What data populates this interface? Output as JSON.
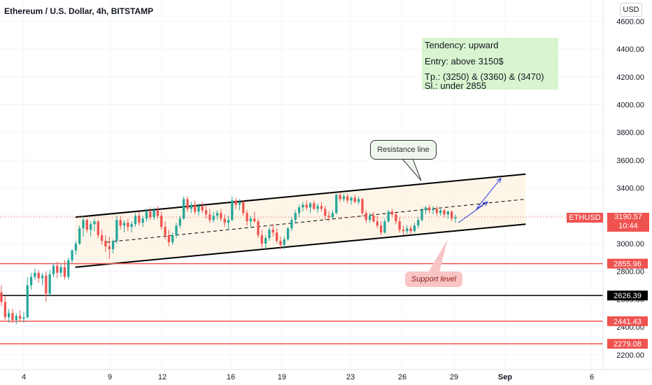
{
  "header": {
    "title": "Ethereum / U.S. Dollar, 4h, BITSTAMP",
    "currency_button": "USD"
  },
  "note": {
    "line1": "Tendency: upward",
    "line2": "Entry: above 3150$",
    "line3": "Tp.: (3250) & (3360) & (3470)",
    "line4": "Sl.: under 2855"
  },
  "callouts": {
    "resistance": "Resistance line",
    "support": "Support level"
  },
  "ticker": {
    "symbol": "ETHUSD",
    "price": "3190.57",
    "countdown": "10:44"
  },
  "colors": {
    "up": "#26a69a",
    "down": "#ef5350",
    "channel_fill": "#fdf3e1",
    "note_bg": "#d8f5cf",
    "arrow": "#2f3ee0"
  },
  "chart_data": {
    "type": "candlestick",
    "symbol": "ETHUSD",
    "interval": "4h",
    "exchange": "BITSTAMP",
    "ylim": [
      2150,
      4700
    ],
    "y_ticks": [
      2200,
      2400,
      2600,
      2800,
      3000,
      3200,
      3400,
      3600,
      3800,
      4000,
      4200,
      4400,
      4600
    ],
    "x_ticks": [
      "4",
      "9",
      "12",
      "16",
      "19",
      "23",
      "26",
      "29",
      "Sep",
      "6"
    ],
    "horizontal_levels": [
      {
        "value": 2855.96,
        "label": "2855.96",
        "color": "#ef5350"
      },
      {
        "value": 2626.39,
        "label": "2626.39",
        "color": "#000000"
      },
      {
        "value": 2441.43,
        "label": "2441.43",
        "color": "#ef5350"
      },
      {
        "value": 2279.08,
        "label": "2279.08",
        "color": "#ef5350"
      }
    ],
    "last_price": 3190.57,
    "channel": {
      "upper": {
        "start": {
          "date": "Aug 7",
          "value": 3190
        },
        "end": {
          "date": "Sep 1",
          "value": 3500
        }
      },
      "lower": {
        "start": {
          "date": "Aug 7",
          "value": 2830
        },
        "end": {
          "date": "Sep 1",
          "value": 3140
        }
      },
      "mid": {
        "start": {
          "date": "Aug 7",
          "value": 3010
        },
        "end": {
          "date": "Sep 1",
          "value": 3320
        }
      }
    },
    "projection": [
      {
        "date": "Aug 29",
        "value": 3150
      },
      {
        "date": "Aug 30",
        "value": 3300
      },
      {
        "date": "Aug 30",
        "value": 3250
      },
      {
        "date": "Aug 31",
        "value": 3470
      }
    ],
    "candles": [
      {
        "o": 2650,
        "h": 2700,
        "l": 2550,
        "c": 2580
      },
      {
        "o": 2580,
        "h": 2620,
        "l": 2450,
        "c": 2470
      },
      {
        "o": 2470,
        "h": 2530,
        "l": 2430,
        "c": 2500
      },
      {
        "o": 2500,
        "h": 2530,
        "l": 2430,
        "c": 2450
      },
      {
        "o": 2450,
        "h": 2500,
        "l": 2420,
        "c": 2480
      },
      {
        "o": 2480,
        "h": 2520,
        "l": 2440,
        "c": 2460
      },
      {
        "o": 2460,
        "h": 2510,
        "l": 2430,
        "c": 2470
      },
      {
        "o": 2470,
        "h": 2760,
        "l": 2460,
        "c": 2700
      },
      {
        "o": 2700,
        "h": 2790,
        "l": 2670,
        "c": 2760
      },
      {
        "o": 2760,
        "h": 2820,
        "l": 2740,
        "c": 2790
      },
      {
        "o": 2790,
        "h": 2810,
        "l": 2720,
        "c": 2750
      },
      {
        "o": 2750,
        "h": 2790,
        "l": 2700,
        "c": 2770
      },
      {
        "o": 2770,
        "h": 2800,
        "l": 2580,
        "c": 2640
      },
      {
        "o": 2640,
        "h": 2810,
        "l": 2620,
        "c": 2780
      },
      {
        "o": 2780,
        "h": 2860,
        "l": 2760,
        "c": 2840
      },
      {
        "o": 2840,
        "h": 2870,
        "l": 2750,
        "c": 2790
      },
      {
        "o": 2790,
        "h": 2850,
        "l": 2760,
        "c": 2830
      },
      {
        "o": 2830,
        "h": 2880,
        "l": 2740,
        "c": 2760
      },
      {
        "o": 2760,
        "h": 2900,
        "l": 2740,
        "c": 2880
      },
      {
        "o": 2880,
        "h": 2960,
        "l": 2860,
        "c": 2950
      },
      {
        "o": 2950,
        "h": 3020,
        "l": 2920,
        "c": 3000
      },
      {
        "o": 3000,
        "h": 3130,
        "l": 2990,
        "c": 3110
      },
      {
        "o": 3110,
        "h": 3200,
        "l": 3050,
        "c": 3170
      },
      {
        "o": 3170,
        "h": 3180,
        "l": 3080,
        "c": 3100
      },
      {
        "o": 3100,
        "h": 3160,
        "l": 3050,
        "c": 3140
      },
      {
        "o": 3140,
        "h": 3180,
        "l": 3090,
        "c": 3160
      },
      {
        "o": 3160,
        "h": 3170,
        "l": 3040,
        "c": 3060
      },
      {
        "o": 3060,
        "h": 3100,
        "l": 2990,
        "c": 3020
      },
      {
        "o": 3020,
        "h": 3060,
        "l": 2940,
        "c": 2980
      },
      {
        "o": 2980,
        "h": 3050,
        "l": 2890,
        "c": 2960
      },
      {
        "o": 2960,
        "h": 3030,
        "l": 2930,
        "c": 3020
      },
      {
        "o": 3020,
        "h": 3200,
        "l": 3000,
        "c": 3170
      },
      {
        "o": 3170,
        "h": 3200,
        "l": 3100,
        "c": 3130
      },
      {
        "o": 3130,
        "h": 3170,
        "l": 3080,
        "c": 3150
      },
      {
        "o": 3150,
        "h": 3180,
        "l": 3090,
        "c": 3120
      },
      {
        "o": 3120,
        "h": 3160,
        "l": 3080,
        "c": 3140
      },
      {
        "o": 3140,
        "h": 3220,
        "l": 3120,
        "c": 3200
      },
      {
        "o": 3200,
        "h": 3230,
        "l": 3130,
        "c": 3150
      },
      {
        "o": 3150,
        "h": 3200,
        "l": 3120,
        "c": 3180
      },
      {
        "o": 3180,
        "h": 3250,
        "l": 3160,
        "c": 3230
      },
      {
        "o": 3230,
        "h": 3260,
        "l": 3170,
        "c": 3190
      },
      {
        "o": 3190,
        "h": 3260,
        "l": 3170,
        "c": 3240
      },
      {
        "o": 3240,
        "h": 3270,
        "l": 3180,
        "c": 3200
      },
      {
        "o": 3200,
        "h": 3230,
        "l": 3100,
        "c": 3120
      },
      {
        "o": 3120,
        "h": 3160,
        "l": 3030,
        "c": 3060
      },
      {
        "o": 3060,
        "h": 3100,
        "l": 2980,
        "c": 3010
      },
      {
        "o": 3010,
        "h": 3080,
        "l": 2990,
        "c": 3060
      },
      {
        "o": 3060,
        "h": 3150,
        "l": 3040,
        "c": 3130
      },
      {
        "o": 3130,
        "h": 3200,
        "l": 3110,
        "c": 3180
      },
      {
        "o": 3180,
        "h": 3340,
        "l": 3170,
        "c": 3320
      },
      {
        "o": 3320,
        "h": 3340,
        "l": 3230,
        "c": 3250
      },
      {
        "o": 3250,
        "h": 3300,
        "l": 3220,
        "c": 3280
      },
      {
        "o": 3280,
        "h": 3310,
        "l": 3210,
        "c": 3230
      },
      {
        "o": 3230,
        "h": 3290,
        "l": 3200,
        "c": 3270
      },
      {
        "o": 3270,
        "h": 3300,
        "l": 3220,
        "c": 3240
      },
      {
        "o": 3240,
        "h": 3270,
        "l": 3180,
        "c": 3210
      },
      {
        "o": 3210,
        "h": 3250,
        "l": 3150,
        "c": 3170
      },
      {
        "o": 3170,
        "h": 3230,
        "l": 3150,
        "c": 3200
      },
      {
        "o": 3200,
        "h": 3240,
        "l": 3170,
        "c": 3220
      },
      {
        "o": 3220,
        "h": 3250,
        "l": 3160,
        "c": 3180
      },
      {
        "o": 3180,
        "h": 3210,
        "l": 3120,
        "c": 3150
      },
      {
        "o": 3150,
        "h": 3200,
        "l": 3100,
        "c": 3170
      },
      {
        "o": 3170,
        "h": 3340,
        "l": 3160,
        "c": 3310
      },
      {
        "o": 3310,
        "h": 3330,
        "l": 3250,
        "c": 3280
      },
      {
        "o": 3280,
        "h": 3320,
        "l": 3240,
        "c": 3300
      },
      {
        "o": 3300,
        "h": 3310,
        "l": 3200,
        "c": 3220
      },
      {
        "o": 3220,
        "h": 3240,
        "l": 3130,
        "c": 3160
      },
      {
        "o": 3160,
        "h": 3200,
        "l": 3120,
        "c": 3180
      },
      {
        "o": 3180,
        "h": 3230,
        "l": 3150,
        "c": 3160
      },
      {
        "o": 3160,
        "h": 3180,
        "l": 3040,
        "c": 3060
      },
      {
        "o": 3060,
        "h": 3100,
        "l": 2970,
        "c": 3000
      },
      {
        "o": 3000,
        "h": 3060,
        "l": 2960,
        "c": 3040
      },
      {
        "o": 3040,
        "h": 3120,
        "l": 3020,
        "c": 3100
      },
      {
        "o": 3100,
        "h": 3140,
        "l": 3050,
        "c": 3080
      },
      {
        "o": 3080,
        "h": 3110,
        "l": 3000,
        "c": 3020
      },
      {
        "o": 3020,
        "h": 3050,
        "l": 2960,
        "c": 2990
      },
      {
        "o": 2990,
        "h": 3050,
        "l": 2960,
        "c": 3030
      },
      {
        "o": 3030,
        "h": 3120,
        "l": 3020,
        "c": 3110
      },
      {
        "o": 3110,
        "h": 3190,
        "l": 3090,
        "c": 3170
      },
      {
        "o": 3170,
        "h": 3240,
        "l": 3150,
        "c": 3220
      },
      {
        "o": 3220,
        "h": 3280,
        "l": 3190,
        "c": 3260
      },
      {
        "o": 3260,
        "h": 3300,
        "l": 3230,
        "c": 3280
      },
      {
        "o": 3280,
        "h": 3310,
        "l": 3240,
        "c": 3260
      },
      {
        "o": 3260,
        "h": 3300,
        "l": 3220,
        "c": 3290
      },
      {
        "o": 3290,
        "h": 3310,
        "l": 3240,
        "c": 3250
      },
      {
        "o": 3250,
        "h": 3290,
        "l": 3220,
        "c": 3270
      },
      {
        "o": 3270,
        "h": 3300,
        "l": 3230,
        "c": 3250
      },
      {
        "o": 3250,
        "h": 3270,
        "l": 3170,
        "c": 3200
      },
      {
        "o": 3200,
        "h": 3230,
        "l": 3160,
        "c": 3190
      },
      {
        "o": 3190,
        "h": 3240,
        "l": 3180,
        "c": 3220
      },
      {
        "o": 3220,
        "h": 3360,
        "l": 3210,
        "c": 3350
      },
      {
        "o": 3350,
        "h": 3370,
        "l": 3300,
        "c": 3320
      },
      {
        "o": 3320,
        "h": 3360,
        "l": 3300,
        "c": 3340
      },
      {
        "o": 3340,
        "h": 3360,
        "l": 3290,
        "c": 3310
      },
      {
        "o": 3310,
        "h": 3340,
        "l": 3280,
        "c": 3330
      },
      {
        "o": 3330,
        "h": 3350,
        "l": 3290,
        "c": 3300
      },
      {
        "o": 3300,
        "h": 3340,
        "l": 3280,
        "c": 3320
      },
      {
        "o": 3320,
        "h": 3330,
        "l": 3200,
        "c": 3220
      },
      {
        "o": 3220,
        "h": 3240,
        "l": 3150,
        "c": 3170
      },
      {
        "o": 3170,
        "h": 3220,
        "l": 3150,
        "c": 3200
      },
      {
        "o": 3200,
        "h": 3230,
        "l": 3150,
        "c": 3160
      },
      {
        "o": 3160,
        "h": 3200,
        "l": 3110,
        "c": 3130
      },
      {
        "o": 3130,
        "h": 3160,
        "l": 3060,
        "c": 3080
      },
      {
        "o": 3080,
        "h": 3180,
        "l": 3070,
        "c": 3160
      },
      {
        "o": 3160,
        "h": 3240,
        "l": 3150,
        "c": 3230
      },
      {
        "o": 3230,
        "h": 3250,
        "l": 3190,
        "c": 3210
      },
      {
        "o": 3210,
        "h": 3230,
        "l": 3140,
        "c": 3160
      },
      {
        "o": 3160,
        "h": 3190,
        "l": 3080,
        "c": 3100
      },
      {
        "o": 3100,
        "h": 3130,
        "l": 3060,
        "c": 3090
      },
      {
        "o": 3090,
        "h": 3130,
        "l": 3070,
        "c": 3110
      },
      {
        "o": 3110,
        "h": 3130,
        "l": 3070,
        "c": 3090
      },
      {
        "o": 3090,
        "h": 3150,
        "l": 3080,
        "c": 3130
      },
      {
        "o": 3130,
        "h": 3190,
        "l": 3110,
        "c": 3170
      },
      {
        "o": 3170,
        "h": 3260,
        "l": 3160,
        "c": 3240
      },
      {
        "o": 3240,
        "h": 3270,
        "l": 3210,
        "c": 3260
      },
      {
        "o": 3260,
        "h": 3280,
        "l": 3220,
        "c": 3240
      },
      {
        "o": 3240,
        "h": 3270,
        "l": 3210,
        "c": 3250
      },
      {
        "o": 3250,
        "h": 3270,
        "l": 3200,
        "c": 3220
      },
      {
        "o": 3220,
        "h": 3260,
        "l": 3200,
        "c": 3240
      },
      {
        "o": 3240,
        "h": 3250,
        "l": 3190,
        "c": 3210
      },
      {
        "o": 3210,
        "h": 3240,
        "l": 3180,
        "c": 3230
      },
      {
        "o": 3230,
        "h": 3240,
        "l": 3160,
        "c": 3180
      },
      {
        "o": 3180,
        "h": 3210,
        "l": 3150,
        "c": 3190
      }
    ]
  }
}
